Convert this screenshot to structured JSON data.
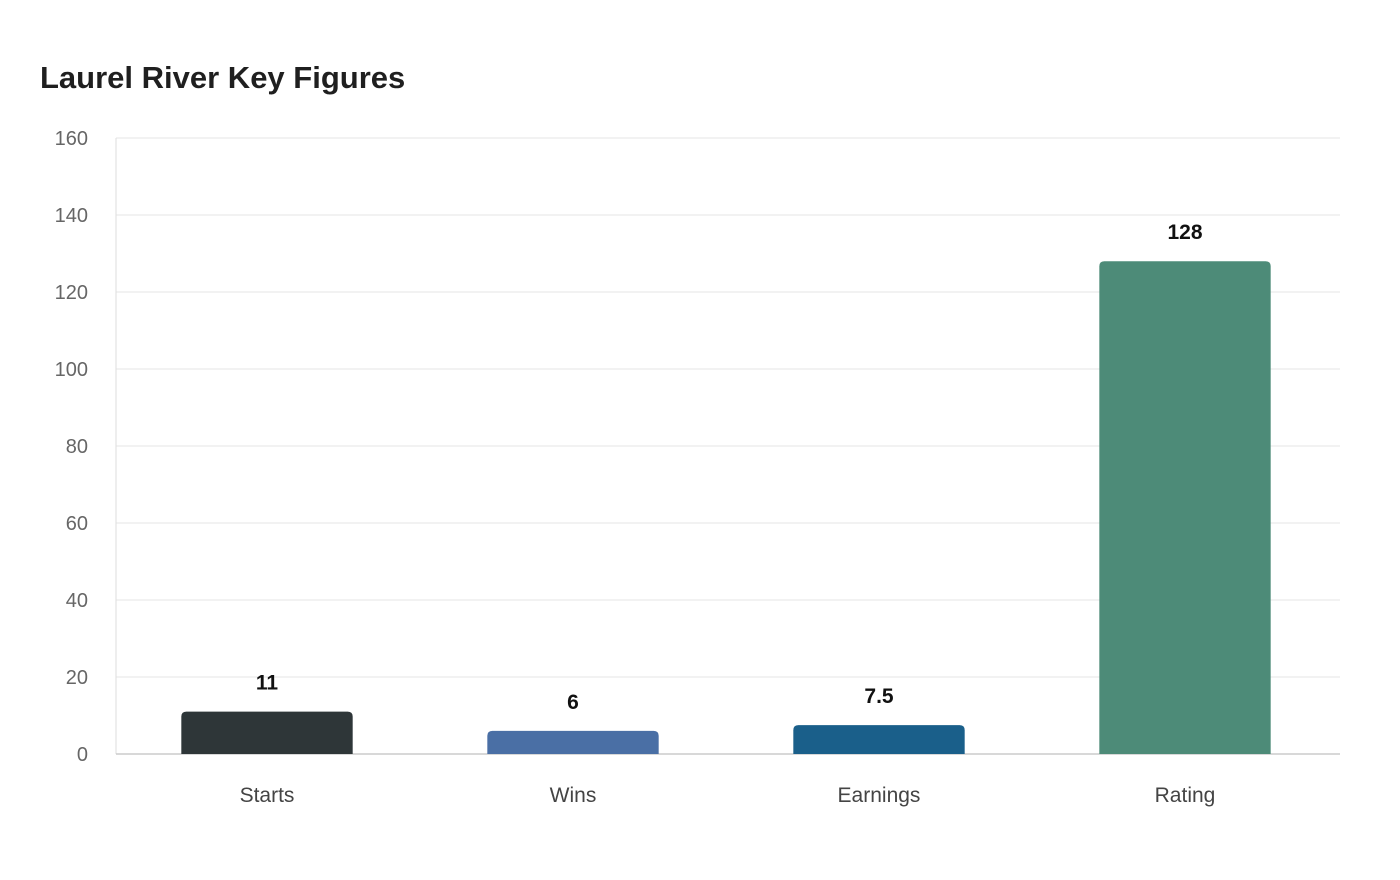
{
  "chart_data": {
    "type": "bar",
    "title": "Laurel River Key Figures",
    "xlabel": "",
    "ylabel": "",
    "categories": [
      "Starts",
      "Wins",
      "Earnings",
      "Rating"
    ],
    "values": [
      11,
      6,
      7.5,
      128
    ],
    "value_labels": [
      "11",
      "6",
      "7.5",
      "128"
    ],
    "bar_colors": [
      "#2e3638",
      "#4a6fa5",
      "#1a5f8a",
      "#4d8b78"
    ],
    "ylim": [
      0,
      160
    ],
    "yticks": [
      0,
      20,
      40,
      60,
      80,
      100,
      120,
      140,
      160
    ],
    "grid": true,
    "legend": "none"
  }
}
